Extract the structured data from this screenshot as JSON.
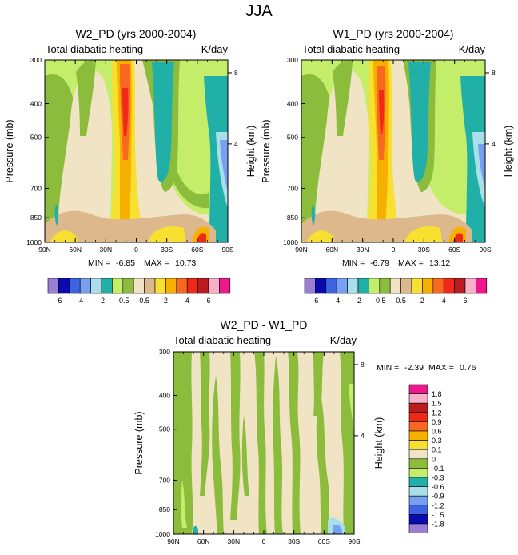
{
  "figure_title": "JJA",
  "colorbar_colors": [
    "#9b7fd6",
    "#0a0ab4",
    "#3c64e0",
    "#78a0f0",
    "#a8dfe8",
    "#20b0a8",
    "#c4ee6a",
    "#8cbc3c",
    "#f0e4c4",
    "#dcb88c",
    "#f8e030",
    "#f8b000",
    "#f86820",
    "#f02818",
    "#b81c20",
    "#f8b0c8",
    "#f0188c"
  ],
  "chart_data": [
    {
      "type": "contour",
      "name": "W2_PD (yrs 2000-2004)",
      "title": "W2_PD (yrs 2000-2004)",
      "left_label": "Total diabatic heating",
      "right_label": "K/day",
      "ylabel": "Pressure (mb)",
      "ylabel_right": "Height (km)",
      "x_ticks": [
        "90N",
        "60N",
        "30N",
        "0",
        "30S",
        "60S",
        "90S"
      ],
      "y_ticks": [
        "300",
        "400",
        "500",
        "700",
        "850",
        "1000"
      ],
      "y_ticks_right": [
        "8",
        "4"
      ],
      "min_label": "MIN = ",
      "min_value": "-6.85",
      "max_label": "MAX = ",
      "max_value": "10.73",
      "cb_labels": [
        "-6",
        "-4",
        "-2",
        "-0.5",
        "0.5",
        "2",
        "4",
        "6"
      ]
    },
    {
      "type": "contour",
      "name": "W1_PD (yrs 2000-2004)",
      "title": "W1_PD (yrs 2000-2004)",
      "left_label": "Total diabatic heating",
      "right_label": "K/day",
      "ylabel": "Pressure (mb)",
      "ylabel_right": "Height (km)",
      "x_ticks": [
        "90N",
        "60N",
        "30N",
        "0",
        "30S",
        "60S",
        "90S"
      ],
      "y_ticks": [
        "300",
        "400",
        "500",
        "700",
        "850",
        "1000"
      ],
      "y_ticks_right": [
        "8",
        "4"
      ],
      "min_label": "MIN = ",
      "min_value": "-6.79",
      "max_label": "MAX = ",
      "max_value": "13.12",
      "cb_labels": [
        "-6",
        "-4",
        "-2",
        "-0.5",
        "0.5",
        "2",
        "4",
        "6"
      ]
    },
    {
      "type": "contour",
      "name": "W2_PD - W1_PD",
      "title": "W2_PD - W1_PD",
      "left_label": "Total diabatic heating",
      "right_label": "K/day",
      "ylabel": "Pressure (mb)",
      "ylabel_right": "Height (km)",
      "x_ticks": [
        "90N",
        "60N",
        "30N",
        "0",
        "30S",
        "60S",
        "90S"
      ],
      "y_ticks": [
        "300",
        "400",
        "500",
        "700",
        "850",
        "1000"
      ],
      "y_ticks_right": [
        "8",
        "4"
      ],
      "min_label": "MIN = ",
      "min_value": "-2.39",
      "max_label": "MAX = ",
      "max_value": "0.76",
      "cb_labels": [
        "1.8",
        "1.5",
        "1.2",
        "0.9",
        "0.6",
        "0.3",
        "0.1",
        "0",
        "-0.1",
        "-0.3",
        "-0.6",
        "-0.9",
        "-1.2",
        "-1.5",
        "-1.8"
      ]
    }
  ]
}
